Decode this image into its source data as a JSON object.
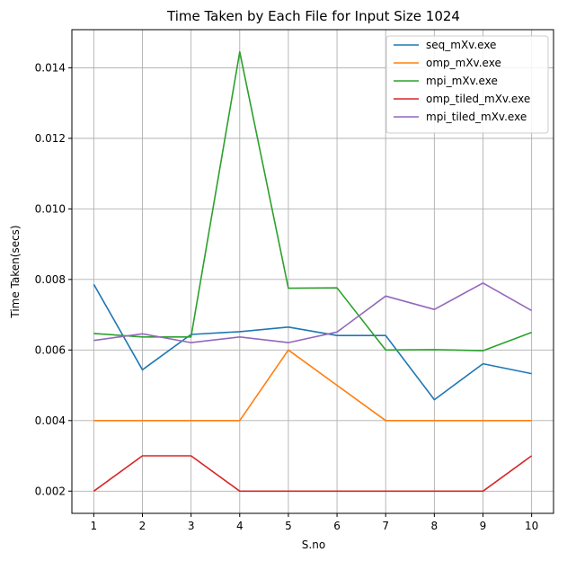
{
  "chart_data": {
    "type": "line",
    "title": "Time Taken by Each File for Input Size 1024",
    "xlabel": "S.no",
    "ylabel": "Time Taken(secs)",
    "x": [
      1,
      2,
      3,
      4,
      5,
      6,
      7,
      8,
      9,
      10
    ],
    "xticks": [
      "1",
      "2",
      "3",
      "4",
      "5",
      "6",
      "7",
      "8",
      "9",
      "10"
    ],
    "xlim": [
      0.55,
      10.45
    ],
    "ylim": [
      0.00137,
      0.01508
    ],
    "yticks": [
      0.002,
      0.004,
      0.006,
      0.008,
      0.01,
      0.012,
      0.014
    ],
    "ytick_labels": [
      "0.002",
      "0.004",
      "0.006",
      "0.008",
      "0.010",
      "0.012",
      "0.014"
    ],
    "grid": true,
    "legend_position": "top-right",
    "series": [
      {
        "name": "seq_mXv.exe",
        "color": "#1f77b4",
        "values": [
          0.00786,
          0.00544,
          0.00644,
          0.00652,
          0.00665,
          0.00641,
          0.00641,
          0.00459,
          0.00561,
          0.00533
        ]
      },
      {
        "name": "omp_mXv.exe",
        "color": "#ff7f0e",
        "values": [
          0.004,
          0.004,
          0.004,
          0.004,
          0.006,
          0.005,
          0.004,
          0.004,
          0.004,
          0.004
        ]
      },
      {
        "name": "mpi_mXv.exe",
        "color": "#2ca02c",
        "values": [
          0.00647,
          0.00637,
          0.00637,
          0.01445,
          0.00775,
          0.00776,
          0.006,
          0.00601,
          0.00598,
          0.0065
        ]
      },
      {
        "name": "omp_tiled_mXv.exe",
        "color": "#d62728",
        "values": [
          0.002,
          0.003,
          0.003,
          0.002,
          0.002,
          0.002,
          0.002,
          0.002,
          0.002,
          0.003
        ]
      },
      {
        "name": "mpi_tiled_mXv.exe",
        "color": "#9467bd",
        "values": [
          0.00627,
          0.00646,
          0.00621,
          0.00637,
          0.00621,
          0.00651,
          0.00753,
          0.00715,
          0.0079,
          0.00712
        ]
      }
    ]
  }
}
